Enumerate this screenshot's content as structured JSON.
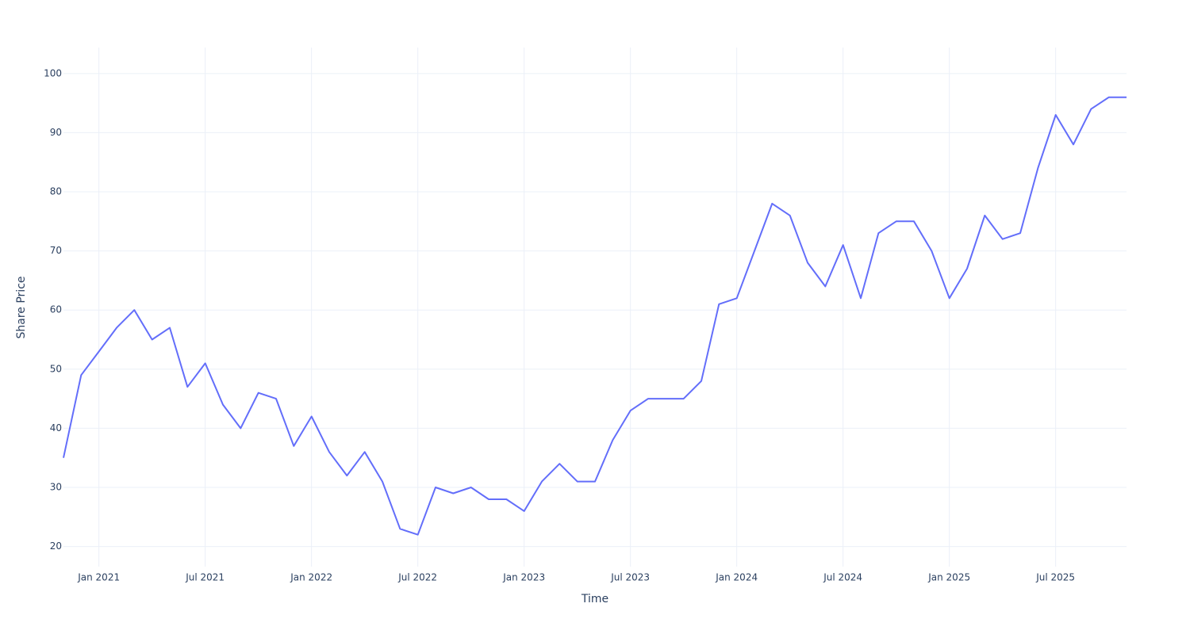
{
  "chart_data": {
    "type": "line",
    "x_label": "Time",
    "y_label": "Share Price",
    "x": [
      "2020-11",
      "2020-12",
      "2021-01",
      "2021-02",
      "2021-03",
      "2021-04",
      "2021-05",
      "2021-06",
      "2021-07",
      "2021-08",
      "2021-09",
      "2021-10",
      "2021-11",
      "2021-12",
      "2022-01",
      "2022-02",
      "2022-03",
      "2022-04",
      "2022-05",
      "2022-06",
      "2022-07",
      "2022-08",
      "2022-09",
      "2022-10",
      "2022-11",
      "2022-12",
      "2023-01",
      "2023-02",
      "2023-03",
      "2023-04",
      "2023-05",
      "2023-06",
      "2023-07",
      "2023-08",
      "2023-09",
      "2023-10",
      "2023-11",
      "2023-12",
      "2024-01",
      "2024-02",
      "2024-03",
      "2024-04",
      "2024-05",
      "2024-06",
      "2024-07",
      "2024-08",
      "2024-09",
      "2024-10",
      "2024-11",
      "2024-12",
      "2025-01",
      "2025-02",
      "2025-03",
      "2025-04",
      "2025-05",
      "2025-06",
      "2025-07",
      "2025-08",
      "2025-09",
      "2025-10",
      "2025-11"
    ],
    "series": [
      {
        "name": "Share Price",
        "color": "#636efa",
        "values": [
          35,
          49,
          53,
          57,
          60,
          55,
          57,
          47,
          51,
          44,
          40,
          46,
          45,
          37,
          42,
          36,
          32,
          36,
          31,
          23,
          22,
          30,
          29,
          30,
          28,
          28,
          26,
          31,
          34,
          31,
          31,
          38,
          43,
          45,
          45,
          45,
          48,
          61,
          62,
          70,
          78,
          76,
          68,
          64,
          71,
          62,
          73,
          75,
          75,
          70,
          62,
          67,
          76,
          72,
          73,
          84,
          93,
          88,
          94,
          96,
          96
        ]
      }
    ],
    "xlim": [
      "2020-11",
      "2025-11"
    ],
    "xticks": [
      {
        "value": "2021-01",
        "label": "Jan 2021"
      },
      {
        "value": "2021-07",
        "label": "Jul 2021"
      },
      {
        "value": "2022-01",
        "label": "Jan 2022"
      },
      {
        "value": "2022-07",
        "label": "Jul 2022"
      },
      {
        "value": "2023-01",
        "label": "Jan 2023"
      },
      {
        "value": "2023-07",
        "label": "Jul 2023"
      },
      {
        "value": "2024-01",
        "label": "Jan 2024"
      },
      {
        "value": "2024-07",
        "label": "Jul 2024"
      },
      {
        "value": "2025-01",
        "label": "Jan 2025"
      },
      {
        "value": "2025-07",
        "label": "Jul 2025"
      }
    ],
    "ylim": [
      16.6,
      104.4
    ],
    "yticks": [
      20,
      30,
      40,
      50,
      60,
      70,
      80,
      90,
      100
    ],
    "grid": true
  }
}
